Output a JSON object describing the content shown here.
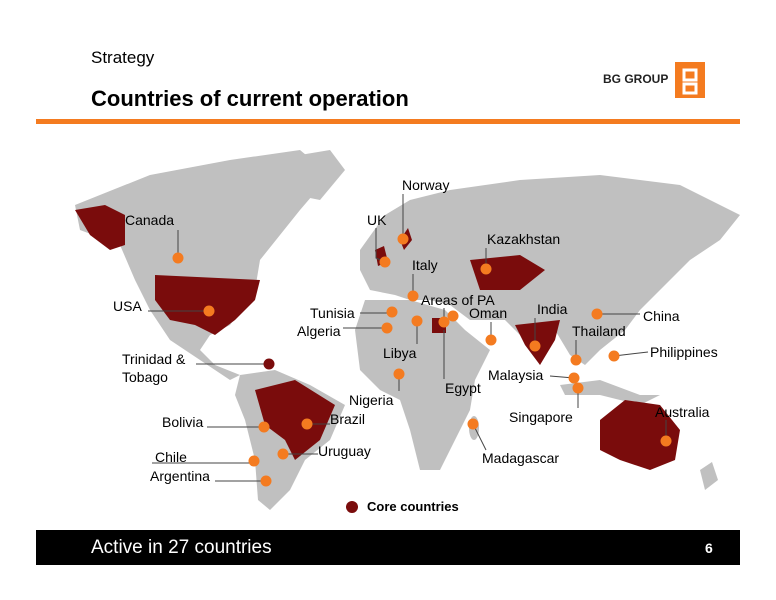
{
  "header": {
    "section": "Strategy",
    "title": "Countries of current operation",
    "logo": "BG GROUP"
  },
  "map": {
    "markers": [
      {
        "label": "Canada"
      },
      {
        "label": "USA"
      },
      {
        "label": "Trinidad & Tobago"
      },
      {
        "label": "Bolivia"
      },
      {
        "label": "Brazil"
      },
      {
        "label": "Chile"
      },
      {
        "label": "Uruguay"
      },
      {
        "label": "Argentina"
      },
      {
        "label": "UK"
      },
      {
        "label": "Norway"
      },
      {
        "label": "Italy"
      },
      {
        "label": "Tunisia"
      },
      {
        "label": "Algeria"
      },
      {
        "label": "Libya"
      },
      {
        "label": "Areas of PA"
      },
      {
        "label": "Egypt"
      },
      {
        "label": "Nigeria"
      },
      {
        "label": "Kazakhstan"
      },
      {
        "label": "India"
      },
      {
        "label": "Oman"
      },
      {
        "label": "China"
      },
      {
        "label": "Thailand"
      },
      {
        "label": "Philippines"
      },
      {
        "label": "Malaysia"
      },
      {
        "label": "Singapore"
      },
      {
        "label": "Madagascar"
      },
      {
        "label": "Australia"
      }
    ],
    "legend": "Core countries"
  },
  "footer": {
    "text": "Active in 27 countries",
    "page": "6"
  }
}
